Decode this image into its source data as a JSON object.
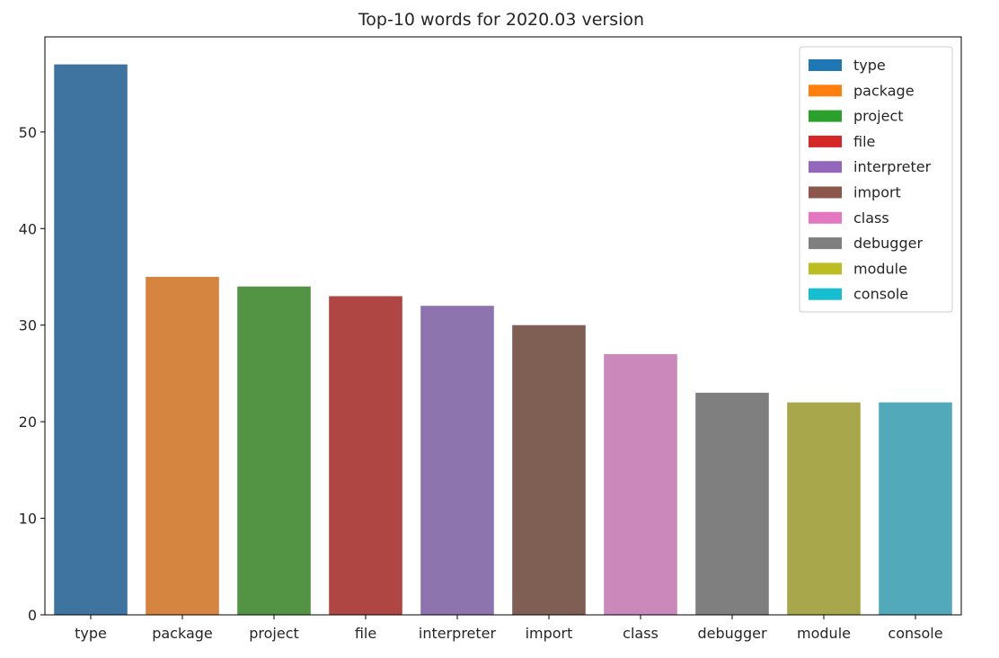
{
  "chart_data": {
    "type": "bar",
    "title": "Top-10 words for 2020.03 version",
    "xlabel": "",
    "ylabel": "",
    "categories": [
      "type",
      "package",
      "project",
      "file",
      "interpreter",
      "import",
      "class",
      "debugger",
      "module",
      "console"
    ],
    "values": [
      57,
      35,
      34,
      33,
      32,
      30,
      27,
      23,
      22,
      22
    ],
    "ylim": [
      0,
      59.85
    ],
    "yticks": [
      0,
      10,
      20,
      30,
      40,
      50
    ],
    "grid": false,
    "legend": {
      "placement": "top-right",
      "entries": [
        "type",
        "package",
        "project",
        "file",
        "interpreter",
        "import",
        "class",
        "debugger",
        "module",
        "console"
      ]
    },
    "colors": [
      "#3f74a1",
      "#d68540",
      "#529344",
      "#b04643",
      "#8e74ae",
      "#7f5e53",
      "#cb88bb",
      "#7f7f7f",
      "#a8a74b",
      "#52a9ba"
    ],
    "legend_colors": [
      "#1f77b4",
      "#ff7f0e",
      "#2ca02c",
      "#d62728",
      "#9467bd",
      "#8c564b",
      "#e377c2",
      "#7f7f7f",
      "#bcbd22",
      "#17becf"
    ]
  }
}
